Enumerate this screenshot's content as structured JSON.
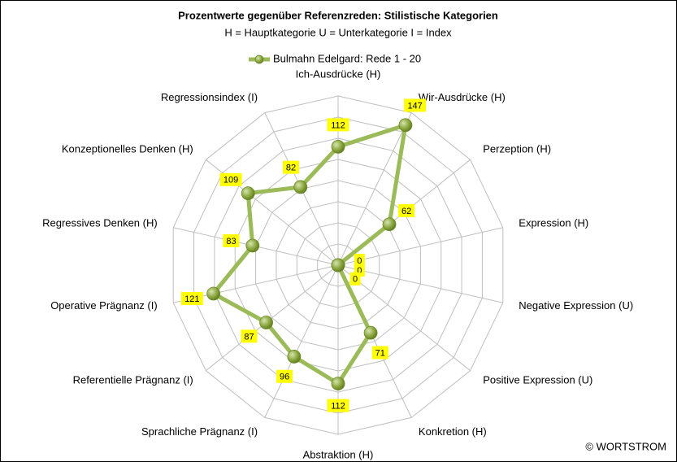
{
  "chart_data": {
    "type": "radar",
    "title": "Prozentwerte gegenüber Referenzreden:  Stilistische Kategorien",
    "subtitle": "H = Hauptkategorie U = Unterkategorie I = Index",
    "categories": [
      "Ich-Ausdrücke (H)",
      "Wir-Ausdrücke (H)",
      "Perzeption (H)",
      "Expression (H)",
      "Negative Expression (U)",
      "Positive Expression (U)",
      "Konkretion (H)",
      "Abstraktion (H)",
      "Sprachliche Prägnanz (I)",
      "Referentielle Prägnanz (I)",
      "Operative Prägnanz (I)",
      "Regressives Denken (H)",
      "Konzeptionelles Denken (H)",
      "Regressionsindex (I)"
    ],
    "series": [
      {
        "name": "Bulmahn Edelgard: Rede 1 - 20",
        "color": "#9bbb59",
        "values": [
          112,
          147,
          62,
          0,
          0,
          0,
          71,
          112,
          96,
          87,
          121,
          83,
          109,
          82
        ]
      }
    ],
    "ylim": [
      0,
      160
    ],
    "yticks": [
      0,
      20,
      40,
      60,
      80,
      100,
      120,
      140,
      160
    ],
    "grid": true,
    "legend": "top",
    "copyright": "© WORTSTROM"
  }
}
